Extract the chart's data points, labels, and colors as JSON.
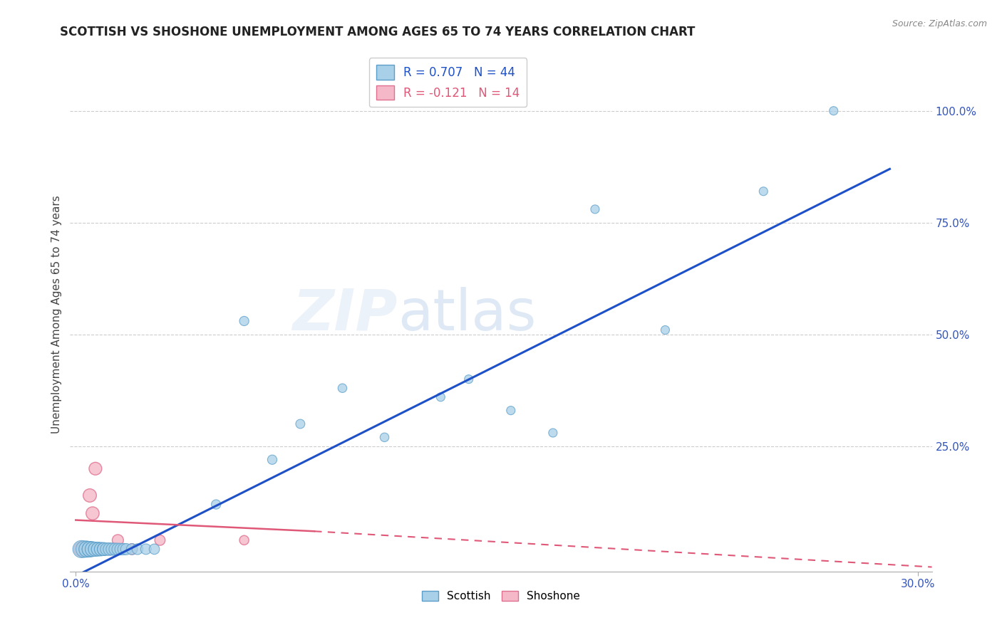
{
  "title": "SCOTTISH VS SHOSHONE UNEMPLOYMENT AMONG AGES 65 TO 74 YEARS CORRELATION CHART",
  "source": "Source: ZipAtlas.com",
  "ylabel": "Unemployment Among Ages 65 to 74 years",
  "xlim": [
    -0.002,
    0.305
  ],
  "ylim": [
    -0.03,
    1.12
  ],
  "xticks": [
    0.0,
    0.3
  ],
  "xticklabels": [
    "0.0%",
    "30.0%"
  ],
  "yticks_right": [
    0.25,
    0.5,
    0.75,
    1.0
  ],
  "ytick_right_labels": [
    "25.0%",
    "50.0%",
    "75.0%",
    "100.0%"
  ],
  "scottish_R": 0.707,
  "scottish_N": 44,
  "shoshone_R": -0.121,
  "shoshone_N": 14,
  "scottish_color": "#a8d0e8",
  "scottish_edge_color": "#5b9ec9",
  "shoshone_color": "#f5b8c8",
  "shoshone_edge_color": "#e07090",
  "trend_blue": "#1e50c8",
  "trend_pink": "#e05878",
  "watermark_zip": "ZIP",
  "watermark_atlas": "atlas",
  "scottish_x": [
    0.002,
    0.003,
    0.004,
    0.004,
    0.005,
    0.005,
    0.005,
    0.006,
    0.006,
    0.007,
    0.007,
    0.008,
    0.008,
    0.009,
    0.009,
    0.01,
    0.01,
    0.01,
    0.011,
    0.012,
    0.013,
    0.014,
    0.015,
    0.016,
    0.017,
    0.018,
    0.02,
    0.022,
    0.025,
    0.028,
    0.05,
    0.06,
    0.07,
    0.08,
    0.095,
    0.11,
    0.13,
    0.14,
    0.155,
    0.17,
    0.185,
    0.21,
    0.245,
    0.27
  ],
  "scottish_y": [
    0.02,
    0.02,
    0.02,
    0.02,
    0.02,
    0.02,
    0.02,
    0.02,
    0.02,
    0.02,
    0.02,
    0.02,
    0.02,
    0.02,
    0.02,
    0.02,
    0.02,
    0.02,
    0.02,
    0.02,
    0.02,
    0.02,
    0.02,
    0.02,
    0.02,
    0.02,
    0.02,
    0.02,
    0.02,
    0.02,
    0.12,
    0.53,
    0.22,
    0.3,
    0.38,
    0.27,
    0.36,
    0.4,
    0.33,
    0.28,
    0.78,
    0.51,
    0.82,
    1.0
  ],
  "scottish_sizes": [
    300,
    280,
    260,
    260,
    240,
    240,
    240,
    220,
    220,
    200,
    200,
    190,
    190,
    180,
    180,
    170,
    170,
    170,
    160,
    160,
    155,
    150,
    145,
    140,
    135,
    130,
    125,
    120,
    115,
    110,
    90,
    90,
    90,
    85,
    80,
    80,
    75,
    75,
    75,
    75,
    75,
    75,
    75,
    75
  ],
  "shoshone_x": [
    0.002,
    0.003,
    0.004,
    0.005,
    0.006,
    0.007,
    0.008,
    0.009,
    0.01,
    0.012,
    0.015,
    0.02,
    0.03,
    0.06
  ],
  "shoshone_y": [
    0.02,
    0.02,
    0.02,
    0.14,
    0.1,
    0.2,
    0.02,
    0.02,
    0.02,
    0.02,
    0.04,
    0.02,
    0.04,
    0.04
  ],
  "shoshone_sizes": [
    220,
    200,
    190,
    180,
    175,
    165,
    160,
    155,
    150,
    140,
    130,
    120,
    110,
    90
  ],
  "blue_trend_x0": 0.0,
  "blue_trend_y0": -0.04,
  "blue_trend_x1": 0.29,
  "blue_trend_y1": 0.87,
  "pink_trend_x0": 0.0,
  "pink_trend_y0": 0.085,
  "pink_trend_x1": 0.305,
  "pink_trend_y1": -0.02
}
